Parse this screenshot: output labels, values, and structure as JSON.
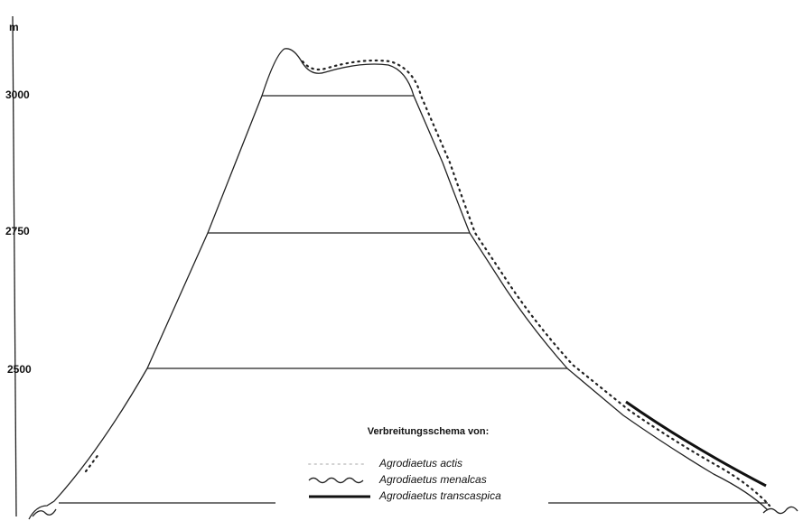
{
  "axis": {
    "unit": "m",
    "ticks": [
      "3000",
      "2750",
      "2500"
    ]
  },
  "legend": {
    "title": "Verbreitungsschema von:",
    "entries": [
      "Agrodiaetus actis",
      "Agrodiaetus menalcas",
      "Agrodiaetus transcaspica"
    ]
  }
}
